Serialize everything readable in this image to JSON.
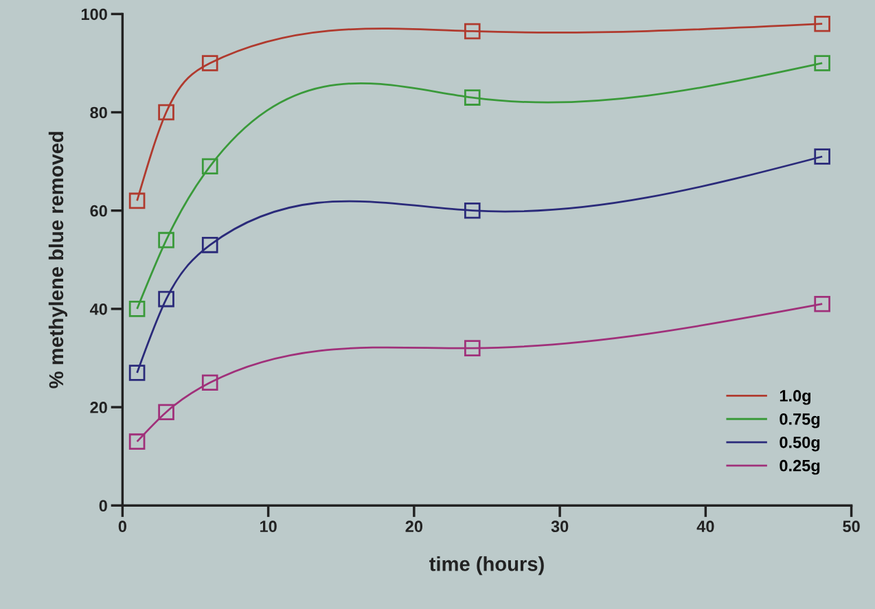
{
  "chart_data": {
    "type": "line",
    "xlabel": "time (hours)",
    "ylabel": "% methylene blue removed",
    "x": [
      1,
      3,
      6,
      24,
      48
    ],
    "series": [
      {
        "name": "1.0g",
        "color": "#b03a2e",
        "values": [
          62,
          80,
          90,
          96.5,
          98
        ]
      },
      {
        "name": "0.75g",
        "color": "#3a9a3a",
        "values": [
          40,
          54,
          69,
          83,
          90
        ]
      },
      {
        "name": "0.50g",
        "color": "#2a2a7a",
        "values": [
          27,
          42,
          53,
          60,
          71
        ]
      },
      {
        "name": "0.25g",
        "color": "#a0307a",
        "values": [
          13,
          19,
          25,
          32,
          41
        ]
      }
    ],
    "xlim": [
      0,
      50
    ],
    "xticks": [
      0,
      10,
      20,
      30,
      40,
      50
    ],
    "ylim": [
      0,
      100
    ],
    "yticks": [
      0,
      20,
      40,
      60,
      80,
      100
    ],
    "grid": false,
    "legend": "bottom right",
    "marker": "square",
    "line_style": "solid"
  }
}
